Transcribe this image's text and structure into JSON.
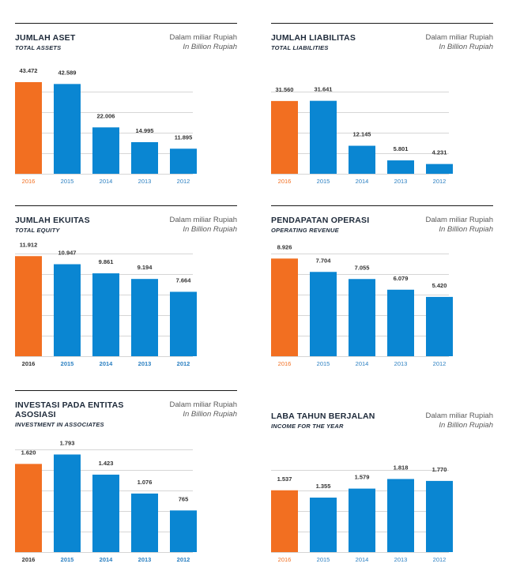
{
  "colors": {
    "highlight": "#f26f21",
    "bar": "#0a86d2",
    "grid": "#d6d6d6",
    "highlight_label": "#f26f21",
    "axis_label": "#2a7fc1",
    "axis_label_dark": "#333333"
  },
  "charts": [
    {
      "title": "JUMLAH ASET",
      "subtitle": "TOTAL ASSETS",
      "unit": "Dalam miliar Rupiah",
      "unit_en": "In Billion Rupiah",
      "chart_data": {
        "type": "bar",
        "categories": [
          "2016",
          "2015",
          "2014",
          "2013",
          "2012"
        ],
        "values": [
          43472,
          42589,
          22006,
          14995,
          11895
        ],
        "value_labels": [
          "43.472",
          "42.589",
          "22.006",
          "14.995",
          "11.895"
        ],
        "highlight": "2016",
        "ylim": [
          0,
          43472
        ],
        "grid": true
      }
    },
    {
      "title": "JUMLAH LIABILITAS",
      "subtitle": "TOTAL LIABILITIES",
      "unit": "Dalam miliar Rupiah",
      "unit_en": "In Billion Rupiah",
      "chart_data": {
        "type": "bar",
        "categories": [
          "2016",
          "2015",
          "2014",
          "2013",
          "2012"
        ],
        "values": [
          31560,
          31641,
          12145,
          5801,
          4231
        ],
        "value_labels": [
          "31.560",
          "31.641",
          "12.145",
          "5.801",
          "4.231"
        ],
        "highlight": "2016",
        "ylim": [
          0,
          37000
        ],
        "grid": true
      }
    },
    {
      "title": "JUMLAH EKUITAS",
      "subtitle": "TOTAL EQUITY",
      "unit": "Dalam miliar Rupiah",
      "unit_en": "In Billion Rupiah",
      "chart_data": {
        "type": "bar",
        "categories": [
          "2016",
          "2015",
          "2014",
          "2013",
          "2012"
        ],
        "values": [
          11912,
          10947,
          9861,
          9194,
          7664
        ],
        "value_labels": [
          "11.912",
          "10.947",
          "9.861",
          "9.194",
          "7.664"
        ],
        "highlight": "2016",
        "ylim": [
          0,
          12500
        ],
        "grid": true
      }
    },
    {
      "title": "PENDAPATAN OPERASI",
      "subtitle": "OPERATING REVENUE",
      "unit": "Dalam miliar Rupiah",
      "unit_en": "In Billion Rupiah",
      "chart_data": {
        "type": "bar",
        "categories": [
          "2016",
          "2015",
          "2014",
          "2013",
          "2012"
        ],
        "values": [
          8926,
          7704,
          7055,
          6079,
          5420
        ],
        "value_labels": [
          "8.926",
          "7.704",
          "7.055",
          "6.079",
          "5.420"
        ],
        "highlight": "2016",
        "ylim": [
          0,
          9600
        ],
        "grid": true
      }
    },
    {
      "title": "INVESTASI PADA ENTITAS ASOSIASI",
      "subtitle": "INVESTMENT IN ASSOCIATES",
      "unit": "Dalam miliar Rupiah",
      "unit_en": "In Billion Rupiah",
      "chart_data": {
        "type": "bar",
        "categories": [
          "2016",
          "2015",
          "2014",
          "2013",
          "2012"
        ],
        "values": [
          1620,
          1793,
          1423,
          1076,
          765
        ],
        "value_labels": [
          "1.620",
          "1.793",
          "1.423",
          "1.076",
          "765"
        ],
        "highlight": "2016",
        "ylim": [
          0,
          1930
        ],
        "grid": true
      }
    },
    {
      "title": "LABA TAHUN BERJALAN",
      "subtitle": "INCOME FOR THE YEAR",
      "unit": "Dalam miliar Rupiah",
      "unit_en": "In Billion Rupiah",
      "chart_data": {
        "type": "bar",
        "categories": [
          "2016",
          "2015",
          "2014",
          "2013",
          "2012"
        ],
        "values": [
          1537,
          1355,
          1579,
          1818,
          1770
        ],
        "value_labels": [
          "1.537",
          "1.355",
          "1.579",
          "1.818",
          "1.770"
        ],
        "highlight": "2016",
        "ylim": [
          0,
          2200
        ],
        "grid": true
      }
    }
  ]
}
